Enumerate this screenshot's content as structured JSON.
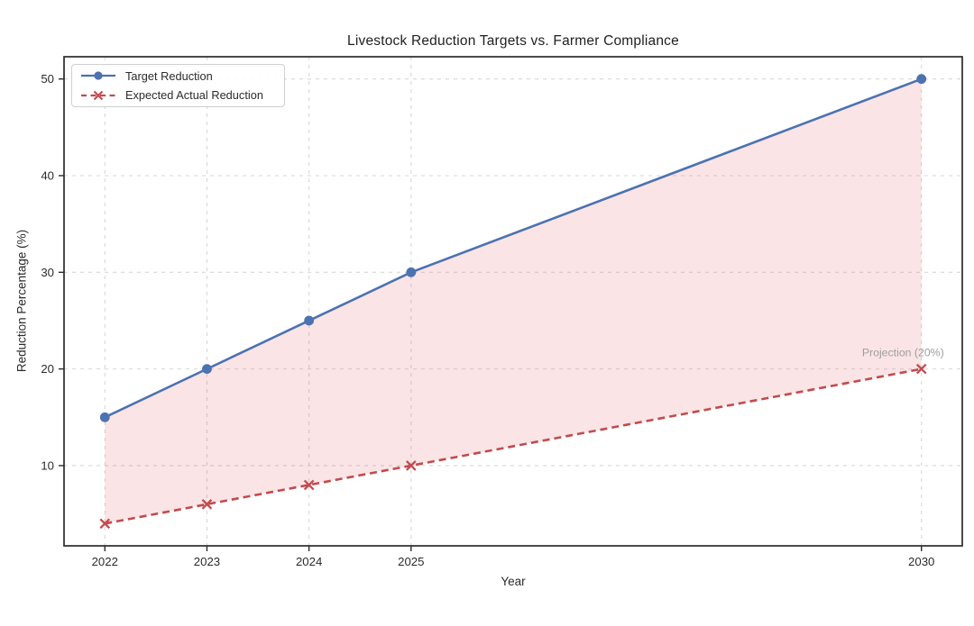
{
  "chart_data": {
    "type": "line",
    "title": "Livestock Reduction Targets vs. Farmer Compliance",
    "xlabel": "Year",
    "ylabel": "Reduction Percentage (%)",
    "x": [
      2022,
      2023,
      2024,
      2025,
      2030
    ],
    "xticks": [
      "2022",
      "2023",
      "2024",
      "2025",
      "2030"
    ],
    "xtick_values": [
      2022,
      2023,
      2024,
      2025,
      2030
    ],
    "yticks": [
      "10",
      "20",
      "30",
      "40",
      "50"
    ],
    "ytick_values": [
      10,
      20,
      30,
      40,
      50
    ],
    "xlim": [
      2021.6,
      2030.4
    ],
    "ylim": [
      1.7,
      52.3
    ],
    "grid": true,
    "grid_style": "dashed",
    "legend_position": "upper-left",
    "series": [
      {
        "name": "Target Reduction",
        "color": "#4C72B0",
        "line_style": "solid",
        "marker": "circle",
        "values": [
          15,
          20,
          25,
          30,
          50
        ]
      },
      {
        "name": "Expected Actual Reduction",
        "color": "#C24B4E",
        "line_style": "dashed",
        "marker": "x",
        "values": [
          4,
          6,
          8,
          10,
          20
        ]
      }
    ],
    "fill_between": {
      "between": [
        "Target Reduction",
        "Expected Actual Reduction"
      ],
      "color": "#E0565E",
      "opacity": 0.16
    },
    "annotation": {
      "text": "Projection (20%)",
      "x": 2030,
      "y": 20,
      "color": "#9E9E9E"
    },
    "colors": {
      "grid": "#D7D7D7",
      "spine": "#2B2B2B",
      "tick_label": "#2B2B2B",
      "title": "#212121"
    }
  }
}
